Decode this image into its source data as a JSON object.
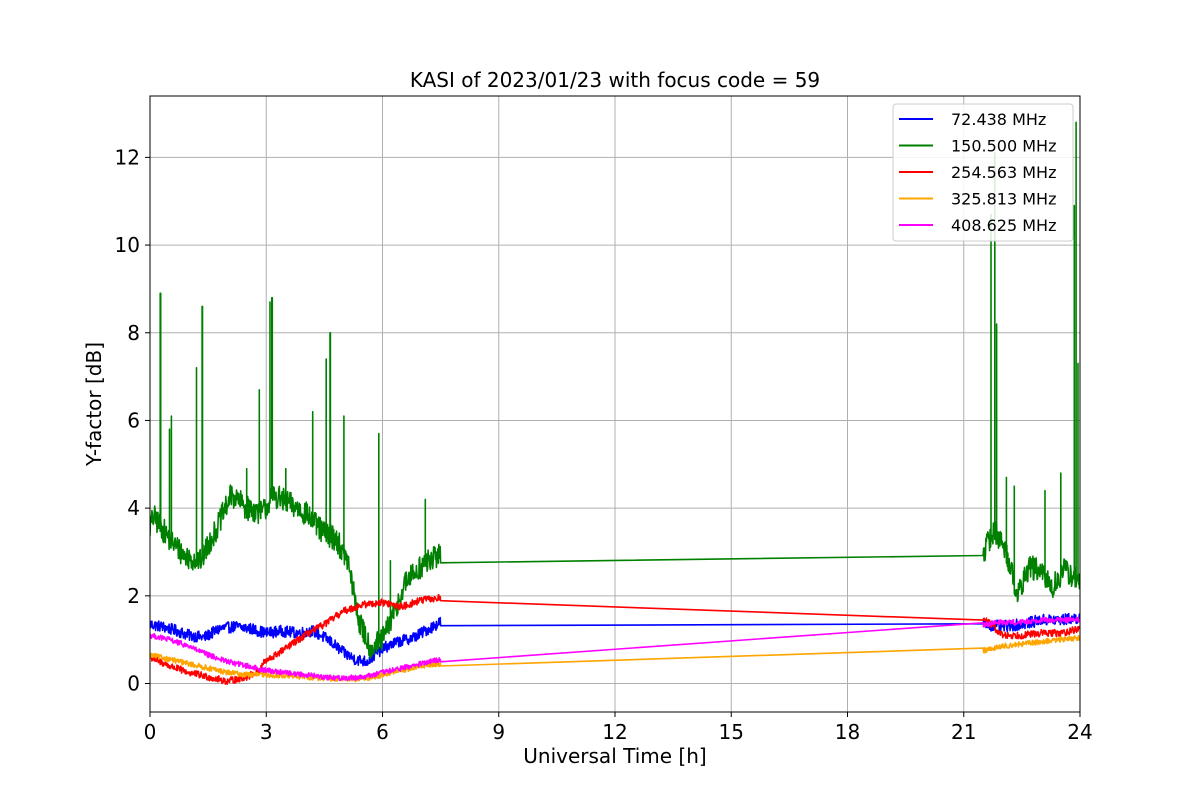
{
  "chart_data": {
    "type": "line",
    "title": "KASI of 2023/01/23 with focus code = 59",
    "xlabel": "Universal Time [h]",
    "ylabel": "Y-factor [dB]",
    "xlim": [
      0,
      24
    ],
    "ylim": [
      -0.65,
      13.4
    ],
    "xticks": [
      0,
      3,
      6,
      9,
      12,
      15,
      18,
      21,
      24
    ],
    "yticks": [
      0,
      2,
      4,
      6,
      8,
      10,
      12
    ],
    "grid": true,
    "legend_position": "top-right",
    "series": [
      {
        "name": " 72.438 MHz",
        "color": "#0000ff",
        "x": [
          0,
          0.3,
          0.7,
          1.0,
          1.4,
          1.8,
          2.2,
          2.6,
          3.0,
          3.4,
          3.8,
          4.2,
          4.6,
          5.0,
          5.3,
          5.6,
          6.0,
          6.4,
          6.8,
          7.2,
          7.5,
          21.5,
          22.0,
          22.5,
          23.0,
          23.5,
          24.0
        ],
        "y": [
          1.35,
          1.3,
          1.2,
          1.1,
          1.05,
          1.25,
          1.3,
          1.25,
          1.15,
          1.2,
          1.15,
          1.2,
          1.0,
          0.7,
          0.55,
          0.5,
          0.8,
          0.95,
          1.05,
          1.25,
          1.4,
          1.35,
          1.3,
          1.35,
          1.45,
          1.45,
          1.5
        ],
        "noise": 0.13
      },
      {
        "name": "150.500 MHz",
        "color": "#008000",
        "x": [
          0,
          0.1,
          0.5,
          0.9,
          1.3,
          1.7,
          2.1,
          2.5,
          2.9,
          3.2,
          3.6,
          4.0,
          4.4,
          4.8,
          5.1,
          5.4,
          5.7,
          6.0,
          6.3,
          6.6,
          6.9,
          7.2,
          7.5,
          21.5,
          21.8,
          22.1,
          22.4,
          22.7,
          23.0,
          23.3,
          23.6,
          24.0
        ],
        "y": [
          3.6,
          3.8,
          3.3,
          2.9,
          2.8,
          3.5,
          4.3,
          4.0,
          3.9,
          4.3,
          4.1,
          3.9,
          3.5,
          3.3,
          2.8,
          1.4,
          0.8,
          1.0,
          1.6,
          2.3,
          2.6,
          2.8,
          2.95,
          3.0,
          3.5,
          3.0,
          2.0,
          2.7,
          2.5,
          2.2,
          2.6,
          2.3
        ],
        "noise": 0.28,
        "spikes": [
          [
            0.27,
            8.9
          ],
          [
            0.5,
            5.8
          ],
          [
            0.55,
            6.1
          ],
          [
            1.2,
            7.2
          ],
          [
            1.35,
            8.6
          ],
          [
            2.5,
            4.9
          ],
          [
            2.82,
            6.7
          ],
          [
            3.1,
            8.7
          ],
          [
            3.15,
            8.8
          ],
          [
            3.5,
            4.9
          ],
          [
            4.2,
            6.2
          ],
          [
            4.55,
            7.4
          ],
          [
            4.65,
            8.0
          ],
          [
            5.0,
            6.1
          ],
          [
            5.9,
            5.7
          ],
          [
            6.2,
            2.8
          ],
          [
            7.1,
            4.2
          ],
          [
            21.7,
            10.7
          ],
          [
            21.8,
            12.1
          ],
          [
            21.85,
            8.2
          ],
          [
            22.1,
            4.7
          ],
          [
            22.3,
            4.5
          ],
          [
            23.1,
            4.4
          ],
          [
            23.5,
            4.8
          ],
          [
            23.85,
            10.9
          ],
          [
            23.9,
            12.8
          ],
          [
            23.95,
            7.3
          ]
        ]
      },
      {
        "name": "254.563 MHz",
        "color": "#ff0000",
        "x": [
          0,
          0.5,
          1.0,
          1.5,
          2.0,
          2.5,
          2.85,
          2.9,
          3.5,
          4.0,
          4.5,
          5.0,
          5.5,
          6.0,
          6.5,
          7.0,
          7.5,
          21.5,
          22.0,
          22.5,
          23.0,
          23.5,
          24.0
        ],
        "y": [
          0.6,
          0.4,
          0.25,
          0.15,
          0.05,
          0.15,
          0.3,
          0.45,
          0.8,
          1.1,
          1.35,
          1.65,
          1.8,
          1.85,
          1.75,
          1.9,
          1.95,
          1.5,
          1.1,
          1.1,
          1.15,
          1.15,
          1.25
        ],
        "noise": 0.08
      },
      {
        "name": "325.813 MHz",
        "color": "#ffa500",
        "x": [
          0,
          0.5,
          1.0,
          1.5,
          2.0,
          2.5,
          3.0,
          3.5,
          4.0,
          4.5,
          5.0,
          5.5,
          6.0,
          6.5,
          7.0,
          7.5,
          21.5,
          22.0,
          22.5,
          23.0,
          23.5,
          24.0
        ],
        "y": [
          0.65,
          0.55,
          0.45,
          0.35,
          0.25,
          0.2,
          0.2,
          0.18,
          0.15,
          0.12,
          0.1,
          0.1,
          0.2,
          0.3,
          0.4,
          0.45,
          0.75,
          0.85,
          0.9,
          0.95,
          1.0,
          1.05
        ],
        "noise": 0.06
      },
      {
        "name": "408.625 MHz",
        "color": "#ff00ff",
        "x": [
          0,
          0.5,
          1.0,
          1.5,
          2.0,
          2.5,
          3.0,
          3.5,
          4.0,
          4.5,
          5.0,
          5.5,
          6.0,
          6.5,
          7.0,
          7.5,
          21.5,
          22.0,
          22.5,
          23.0,
          23.5,
          24.0
        ],
        "y": [
          1.1,
          1.0,
          0.85,
          0.65,
          0.5,
          0.4,
          0.3,
          0.25,
          0.2,
          0.15,
          0.12,
          0.15,
          0.25,
          0.35,
          0.45,
          0.55,
          1.35,
          1.4,
          1.4,
          1.45,
          1.45,
          1.45
        ],
        "noise": 0.06
      }
    ]
  }
}
